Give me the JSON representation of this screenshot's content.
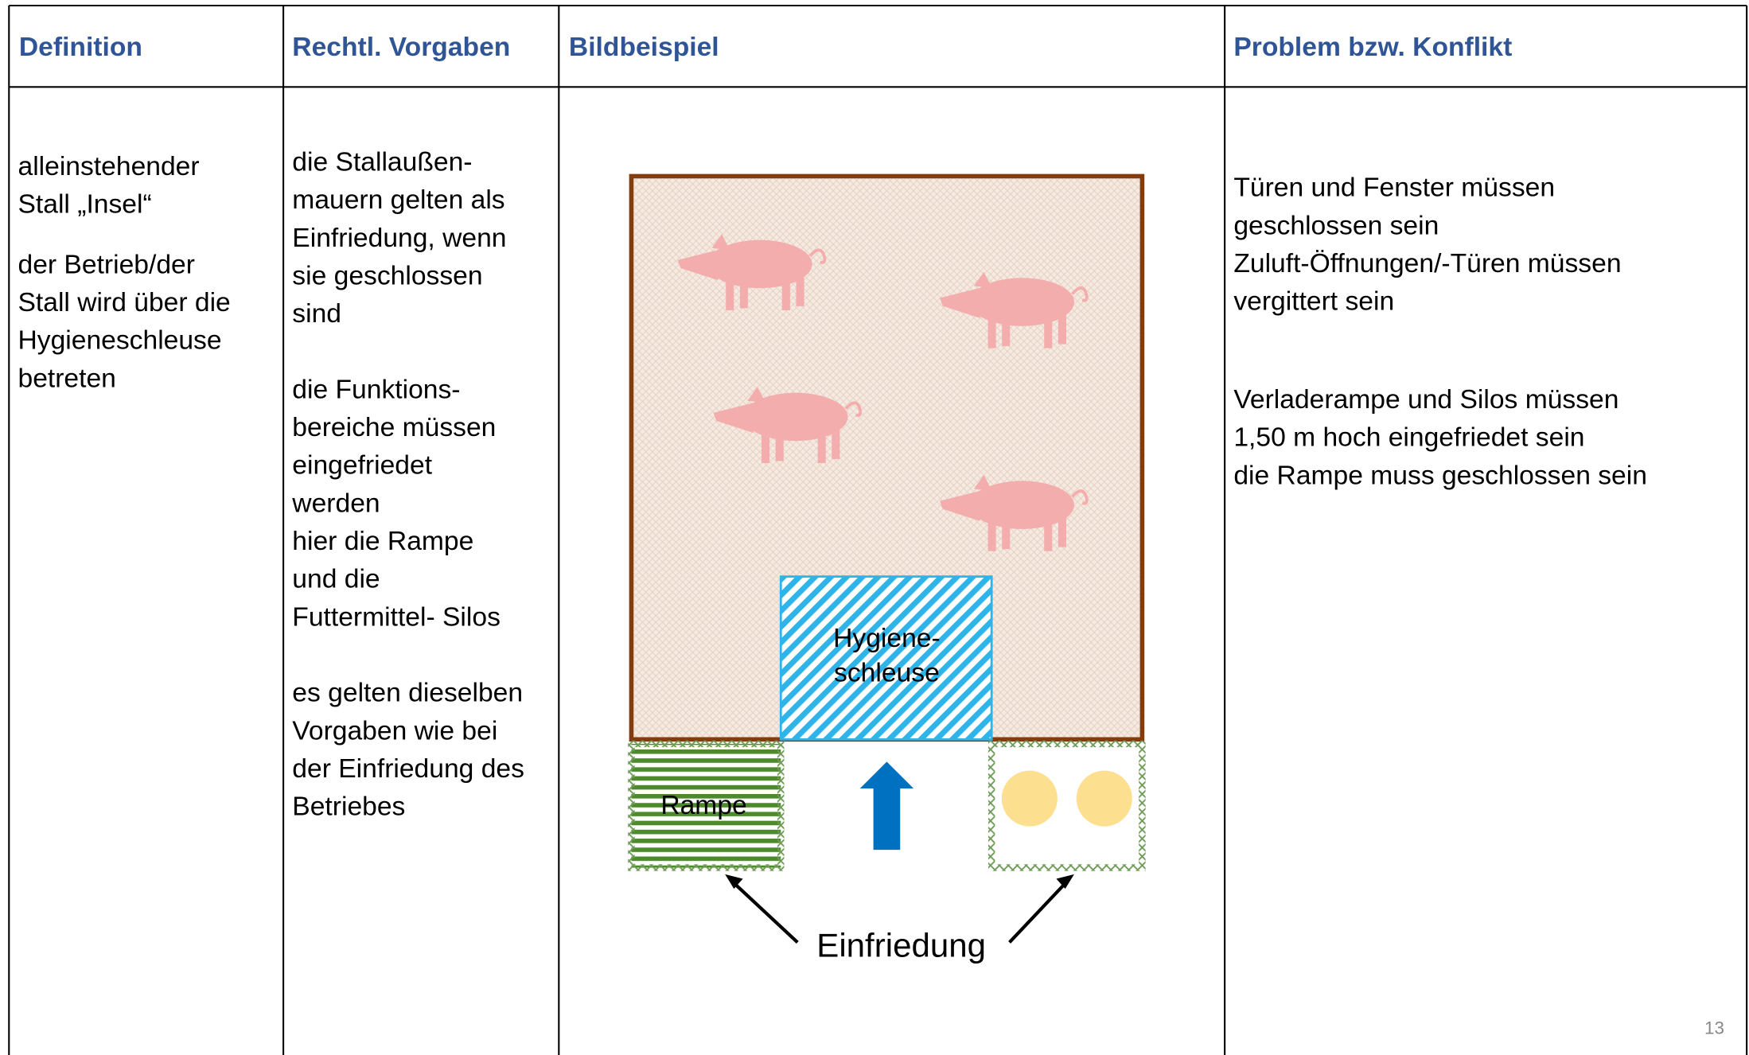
{
  "header": [
    "Definition",
    "Rechtl. Vorgaben",
    "Bildbeispiel",
    "Problem bzw. Konflikt"
  ],
  "columns": {
    "definition": [
      [
        "alleinstehender",
        "Stall „Insel“"
      ],
      [
        "der Betrieb/der",
        "Stall wird über die",
        "Hygieneschleuse",
        "betreten"
      ]
    ],
    "vorgaben": [
      [
        "die Stallaußen-",
        "mauern gelten als",
        "Einfriedung, wenn",
        "sie geschlossen",
        "sind"
      ],
      [
        "die Funktions-",
        "bereiche müssen",
        "eingefriedet",
        "werden",
        "hier die Rampe",
        "und die",
        "Futtermittel- Silos"
      ],
      [
        "es gelten dieselben",
        "Vorgaben wie bei",
        "der Einfriedung des",
        "Betriebes"
      ]
    ],
    "konflikt": [
      [
        "Türen und Fenster müssen",
        "geschlossen sein",
        "Zuluft-Öffnungen/-Türen müssen",
        "vergittert sein"
      ],
      [
        "Verladerampe und Silos müssen",
        "1,50 m hoch eingefriedet sein",
        "die Rampe muss geschlossen sein"
      ]
    ]
  },
  "diagram": {
    "hygiene": [
      "Hygiene-",
      "schleuse"
    ],
    "rampe": "Rampe",
    "einfriedung": "Einfriedung"
  },
  "page_number": "13"
}
